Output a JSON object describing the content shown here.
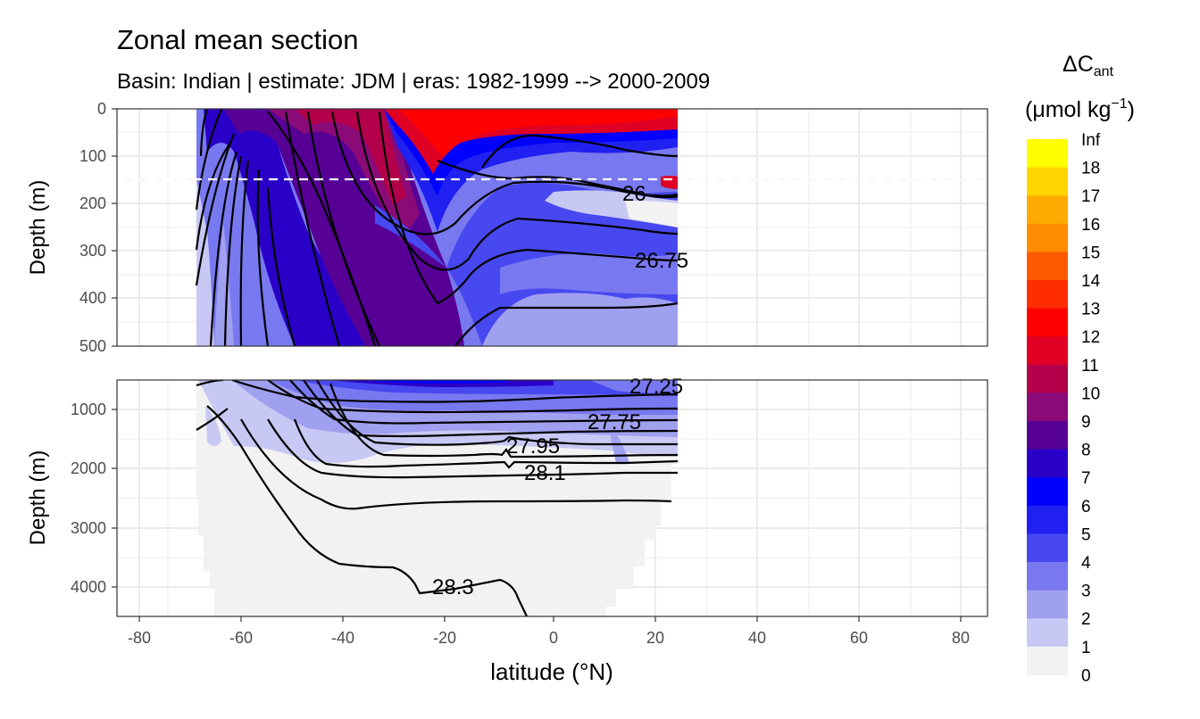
{
  "chart_data": {
    "type": "contour_section",
    "title": "Zonal mean section",
    "subtitle": "Basin: Indian | estimate: JDM  | eras: 1982-1999 --> 2000-2009",
    "xlabel": "latitude (°N)",
    "ylabel": "Depth (m)",
    "xlim": [
      -85,
      85
    ],
    "x_ticks": [
      -80,
      -60,
      -40,
      -20,
      0,
      20,
      40,
      60,
      80
    ],
    "data_lat_range": [
      -69.5,
      24.5
    ],
    "panels": [
      {
        "name": "upper",
        "ylim": [
          0,
          500
        ],
        "y_ticks": [
          0,
          100,
          200,
          300,
          400,
          500
        ]
      },
      {
        "name": "lower",
        "ylim": [
          500,
          4500
        ],
        "y_ticks": [
          1000,
          2000,
          3000,
          4000
        ]
      }
    ],
    "reference_depth_line_m": 150,
    "legend": {
      "title_main": "ΔC",
      "title_sub": "ant",
      "unit": "(μmol kg",
      "unit_sup": "−1",
      "unit_close": ")",
      "breaks": [
        "Inf",
        "18",
        "17",
        "16",
        "15",
        "14",
        "13",
        "12",
        "11",
        "10",
        "9",
        "8",
        "7",
        "6",
        "5",
        "4",
        "3",
        "2",
        "1",
        "0"
      ],
      "colors": [
        "#ffff00",
        "#ffd400",
        "#ffaa00",
        "#ff8c00",
        "#ff5a00",
        "#ff2d00",
        "#ff0000",
        "#e00024",
        "#b4004a",
        "#8a0a78",
        "#560096",
        "#2a00c8",
        "#0000ff",
        "#2020f0",
        "#4848f0",
        "#7878f0",
        "#a0a0f0",
        "#c8c8f4",
        "#f2f2f2"
      ]
    },
    "isopycnals": [
      {
        "label": "26",
        "panel": "upper",
        "lat": 17,
        "depth": 180
      },
      {
        "label": "26.75",
        "panel": "upper",
        "lat": 20,
        "depth": 325
      },
      {
        "label": "27.25",
        "panel": "lower",
        "lat": 22,
        "depth": 600
      },
      {
        "label": "27.75",
        "panel": "lower",
        "lat": 14,
        "depth": 1250
      },
      {
        "label": "27.95",
        "panel": "lower",
        "lat": -3,
        "depth": 1600
      },
      {
        "label": "28.1",
        "panel": "lower",
        "lat": -1,
        "depth": 2080
      },
      {
        "label": "28.3",
        "panel": "lower",
        "lat": -19,
        "depth": 4000
      }
    ]
  }
}
